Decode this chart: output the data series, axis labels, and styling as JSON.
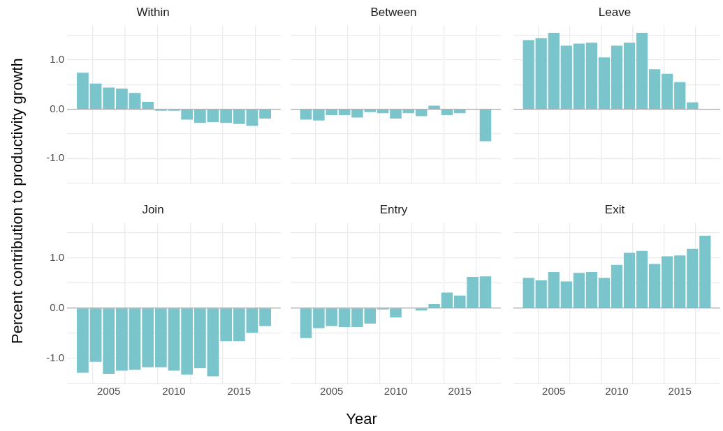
{
  "chart_data": [
    {
      "type": "bar",
      "title": "Within",
      "x": [
        2003,
        2004,
        2005,
        2006,
        2007,
        2008,
        2009,
        2010,
        2011,
        2012,
        2013,
        2014,
        2015,
        2016,
        2017
      ],
      "values": [
        0.74,
        0.52,
        0.44,
        0.42,
        0.33,
        0.15,
        -0.03,
        -0.03,
        -0.21,
        -0.28,
        -0.26,
        -0.28,
        -0.3,
        -0.34,
        -0.19
      ],
      "color": "#7ac4cc",
      "xlim": [
        2001.8,
        2018.2
      ],
      "xticks": [
        2005,
        2010,
        2015
      ],
      "ylim": [
        -1.52,
        1.7
      ],
      "yticks": [
        {
          "value": -1,
          "label": "-1.0"
        },
        {
          "value": 0,
          "label": "0.0"
        },
        {
          "value": 1,
          "label": "1.0"
        }
      ],
      "grid": true,
      "tick_labels": "y",
      "ref_lines": [
        {
          "axis": "y",
          "value": 0,
          "color": "#a6a6a6"
        }
      ]
    },
    {
      "type": "bar",
      "title": "Between",
      "x": [
        2003,
        2004,
        2005,
        2006,
        2007,
        2008,
        2009,
        2010,
        2011,
        2012,
        2013,
        2014,
        2015,
        2017
      ],
      "values": [
        -0.21,
        -0.23,
        -0.12,
        -0.12,
        -0.17,
        -0.06,
        -0.08,
        -0.19,
        -0.08,
        -0.14,
        0.07,
        -0.12,
        -0.08,
        -0.65
      ],
      "color": "#7ac4cc",
      "xlim": [
        2001.8,
        2018.2
      ],
      "xticks": [
        2005,
        2010,
        2015
      ],
      "ylim": [
        -1.52,
        1.7
      ],
      "yticks": [
        -1,
        0,
        1
      ],
      "grid": true,
      "tick_labels": false,
      "ref_lines": [
        {
          "axis": "y",
          "value": 0,
          "color": "#a6a6a6"
        }
      ]
    },
    {
      "type": "bar",
      "title": "Leave",
      "x": [
        2003,
        2004,
        2005,
        2006,
        2007,
        2008,
        2009,
        2010,
        2011,
        2012,
        2013,
        2014,
        2015,
        2016
      ],
      "values": [
        1.4,
        1.44,
        1.55,
        1.29,
        1.33,
        1.35,
        1.05,
        1.29,
        1.35,
        1.55,
        0.81,
        0.72,
        0.55,
        0.14
      ],
      "color": "#7ac4cc",
      "xlim": [
        2001.8,
        2018.2
      ],
      "xticks": [
        2005,
        2010,
        2015
      ],
      "ylim": [
        -1.52,
        1.7
      ],
      "yticks": [
        -1,
        0,
        1
      ],
      "grid": true,
      "tick_labels": false,
      "ref_lines": [
        {
          "axis": "y",
          "value": 0,
          "color": "#a6a6a6"
        }
      ]
    },
    {
      "type": "bar",
      "title": "Join",
      "ylabel": "Percent contribution to productivity growth",
      "x": [
        2003,
        2004,
        2005,
        2006,
        2007,
        2008,
        2009,
        2010,
        2011,
        2012,
        2013,
        2014,
        2015,
        2016,
        2017
      ],
      "values": [
        -1.29,
        -1.07,
        -1.31,
        -1.25,
        -1.23,
        -1.18,
        -1.18,
        -1.25,
        -1.33,
        -1.2,
        -1.36,
        -0.66,
        -0.66,
        -0.49,
        -0.36
      ],
      "color": "#7ac4cc",
      "xlim": [
        2001.8,
        2018.2
      ],
      "xticks": [
        2005,
        2010,
        2015
      ],
      "ylim": [
        -1.52,
        1.7
      ],
      "yticks": [
        {
          "value": -1,
          "label": "-1.0"
        },
        {
          "value": 0,
          "label": "0.0"
        },
        {
          "value": 1,
          "label": "1.0"
        }
      ],
      "grid": true,
      "ref_lines": [
        {
          "axis": "y",
          "value": 0,
          "color": "#a6a6a6"
        }
      ]
    },
    {
      "type": "bar",
      "title": "Entry",
      "xlabel": "Year",
      "x": [
        2003,
        2004,
        2005,
        2006,
        2007,
        2008,
        2009,
        2010,
        2012,
        2013,
        2014,
        2015,
        2016,
        2017
      ],
      "values": [
        -0.6,
        -0.4,
        -0.36,
        -0.38,
        -0.38,
        -0.31,
        -0.03,
        -0.19,
        -0.05,
        0.08,
        0.31,
        0.25,
        0.62,
        0.63
      ],
      "color": "#7ac4cc",
      "xlim": [
        2001.8,
        2018.2
      ],
      "xticks": [
        2005,
        2010,
        2015
      ],
      "ylim": [
        -1.52,
        1.7
      ],
      "yticks": [
        -1,
        0,
        1
      ],
      "grid": true,
      "tick_labels": "x",
      "ref_lines": [
        {
          "axis": "y",
          "value": 0,
          "color": "#a6a6a6"
        }
      ]
    },
    {
      "type": "bar",
      "title": "Exit",
      "x": [
        2003,
        2004,
        2005,
        2006,
        2007,
        2008,
        2009,
        2010,
        2011,
        2012,
        2013,
        2014,
        2015,
        2016,
        2017
      ],
      "values": [
        0.6,
        0.55,
        0.72,
        0.53,
        0.7,
        0.72,
        0.6,
        0.86,
        1.1,
        1.14,
        0.88,
        1.03,
        1.05,
        1.18,
        1.44
      ],
      "color": "#7ac4cc",
      "xlim": [
        2001.8,
        2018.2
      ],
      "xticks": [
        2005,
        2010,
        2015
      ],
      "ylim": [
        -1.52,
        1.7
      ],
      "yticks": [
        -1,
        0,
        1
      ],
      "grid": true,
      "tick_labels": "x",
      "ref_lines": [
        {
          "axis": "y",
          "value": 0,
          "color": "#a6a6a6"
        }
      ]
    }
  ]
}
